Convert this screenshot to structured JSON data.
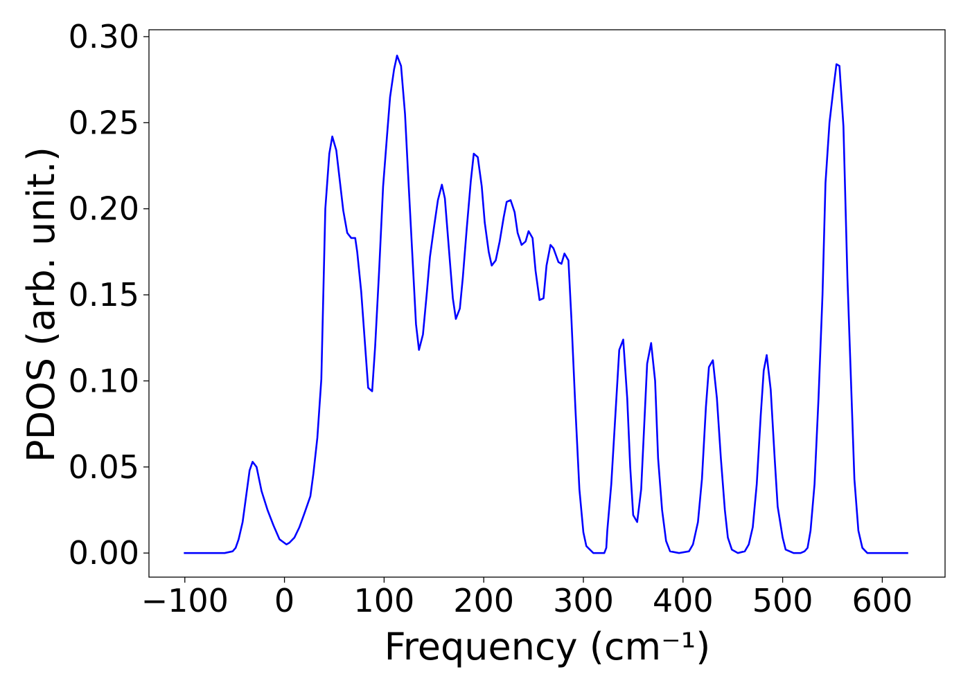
{
  "chart_data": {
    "type": "line",
    "xlabel": "Frequency (cm⁻¹)",
    "ylabel": "PDOS (arb. unit.)",
    "xlim": [
      -136,
      663
    ],
    "ylim": [
      -0.014,
      0.304
    ],
    "xticks": [
      {
        "value": -100,
        "label": "−100"
      },
      0,
      100,
      200,
      300,
      400,
      500,
      600
    ],
    "yticks": [
      {
        "value": 0,
        "label": "0.00"
      },
      {
        "value": 0.05,
        "label": "0.05"
      },
      {
        "value": 0.1,
        "label": "0.10"
      },
      {
        "value": 0.15,
        "label": "0.15"
      },
      {
        "value": 0.2,
        "label": "0.20"
      },
      {
        "value": 0.25,
        "label": "0.25"
      },
      {
        "value": 0.3,
        "label": "0.30"
      }
    ],
    "grid": false,
    "series": [
      {
        "color": "#0000ff",
        "x": [
          -101,
          -60,
          -52,
          -49,
          -46,
          -42,
          -35,
          -32,
          -28,
          -23,
          -17,
          -11,
          -5,
          2,
          5,
          10,
          15,
          20,
          26,
          29,
          33,
          37,
          41,
          45,
          48,
          52,
          59,
          63,
          67,
          71,
          73,
          77,
          81,
          84,
          88,
          91,
          95,
          99,
          103,
          106,
          110,
          113,
          117,
          121,
          124,
          128,
          132,
          135,
          139,
          143,
          146,
          150,
          154,
          158,
          161,
          165,
          169,
          172,
          176,
          179,
          183,
          187,
          190,
          194,
          198,
          201,
          205,
          208,
          212,
          216,
          220,
          223,
          227,
          231,
          234,
          238,
          242,
          245,
          249,
          252,
          256,
          260,
          263,
          267,
          270,
          275,
          278,
          281,
          285,
          288,
          292,
          296,
          300,
          303,
          310,
          321,
          323,
          324,
          328,
          336,
          340,
          344,
          347,
          350,
          354,
          358,
          364,
          368,
          372,
          375,
          379,
          383,
          387,
          396,
          406,
          410,
          415,
          419,
          423,
          426,
          430,
          434,
          438,
          442,
          445,
          449,
          455,
          462,
          466,
          470,
          474,
          478,
          481,
          484,
          488,
          492,
          495,
          500,
          503,
          511,
          518,
          522,
          525,
          528,
          532,
          536,
          540,
          543,
          547,
          551,
          554,
          557,
          561,
          565,
          572,
          576,
          580,
          585,
          626
        ],
        "values": [
          0,
          0,
          0.001,
          0.003,
          0.008,
          0.018,
          0.048,
          0.053,
          0.05,
          0.036,
          0.025,
          0.016,
          0.008,
          0.005,
          0.006,
          0.009,
          0.015,
          0.023,
          0.033,
          0.046,
          0.067,
          0.101,
          0.2,
          0.232,
          0.242,
          0.234,
          0.199,
          0.186,
          0.183,
          0.183,
          0.175,
          0.152,
          0.12,
          0.096,
          0.094,
          0.12,
          0.164,
          0.213,
          0.243,
          0.265,
          0.281,
          0.289,
          0.283,
          0.255,
          0.221,
          0.177,
          0.133,
          0.118,
          0.127,
          0.152,
          0.172,
          0.189,
          0.205,
          0.214,
          0.206,
          0.177,
          0.148,
          0.136,
          0.142,
          0.16,
          0.189,
          0.216,
          0.232,
          0.23,
          0.213,
          0.192,
          0.175,
          0.167,
          0.17,
          0.181,
          0.195,
          0.204,
          0.205,
          0.198,
          0.186,
          0.179,
          0.181,
          0.187,
          0.183,
          0.164,
          0.147,
          0.148,
          0.167,
          0.179,
          0.177,
          0.169,
          0.168,
          0.174,
          0.17,
          0.136,
          0.084,
          0.037,
          0.012,
          0.004,
          0,
          0,
          0.003,
          0.013,
          0.04,
          0.118,
          0.124,
          0.09,
          0.05,
          0.022,
          0.018,
          0.037,
          0.11,
          0.122,
          0.1,
          0.055,
          0.025,
          0.007,
          0.001,
          0,
          0.001,
          0.005,
          0.018,
          0.043,
          0.085,
          0.108,
          0.112,
          0.09,
          0.055,
          0.025,
          0.009,
          0.002,
          0,
          0.001,
          0.005,
          0.015,
          0.04,
          0.08,
          0.106,
          0.115,
          0.095,
          0.055,
          0.027,
          0.009,
          0.002,
          0,
          0,
          0.001,
          0.003,
          0.013,
          0.04,
          0.09,
          0.15,
          0.215,
          0.25,
          0.27,
          0.284,
          0.283,
          0.248,
          0.16,
          0.043,
          0.013,
          0.003,
          0,
          0
        ]
      }
    ]
  }
}
